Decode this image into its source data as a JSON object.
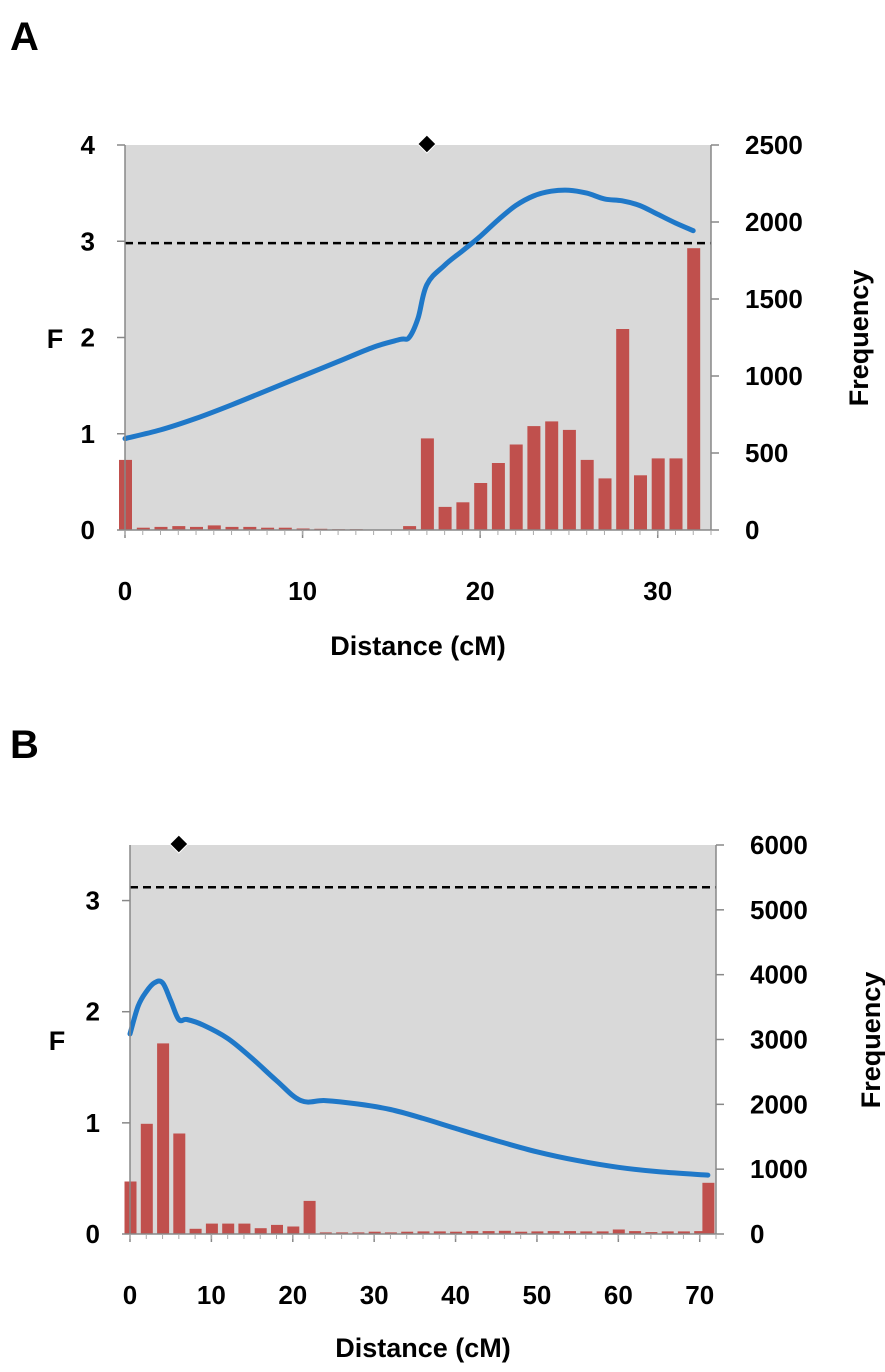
{
  "panels": [
    {
      "label": "A",
      "chart_data": {
        "type": "bar+line",
        "xlabel": "Distance (cM)",
        "ylabel_left": "F",
        "ylabel_right": "Frequency",
        "xlim": [
          0,
          33
        ],
        "ylim_left": [
          0,
          4
        ],
        "ylim_right": [
          0,
          2500
        ],
        "xticks": [
          "0",
          "10",
          "20",
          "30"
        ],
        "yticks_left": [
          "0",
          "1",
          "2",
          "3",
          "4"
        ],
        "yticks_right": [
          "0",
          "500",
          "1000",
          "1500",
          "2000",
          "2500"
        ],
        "threshold": 2.98,
        "marker_x": 17,
        "bars": {
          "name": "Frequency",
          "x": [
            0,
            1,
            2,
            3,
            4,
            5,
            6,
            7,
            8,
            9,
            10,
            11,
            12,
            13,
            14,
            15,
            16,
            17,
            18,
            19,
            20,
            21,
            22,
            23,
            24,
            25,
            26,
            27,
            28,
            29,
            30,
            31,
            32
          ],
          "values": [
            455,
            15,
            20,
            25,
            20,
            30,
            20,
            20,
            15,
            15,
            10,
            8,
            5,
            5,
            0,
            0,
            25,
            595,
            150,
            180,
            305,
            435,
            555,
            675,
            705,
            650,
            455,
            335,
            1305,
            355,
            465,
            465,
            1830
          ]
        },
        "line": {
          "name": "F",
          "x": [
            0,
            2,
            4,
            6,
            8,
            10,
            12,
            14,
            15.5,
            16,
            16.5,
            17,
            18,
            19,
            20,
            21,
            22,
            23,
            24,
            25,
            26,
            27,
            28,
            29,
            30,
            31,
            32
          ],
          "values": [
            0.95,
            1.04,
            1.16,
            1.3,
            1.45,
            1.6,
            1.75,
            1.9,
            1.98,
            2.0,
            2.2,
            2.55,
            2.75,
            2.9,
            3.05,
            3.22,
            3.37,
            3.47,
            3.52,
            3.53,
            3.5,
            3.44,
            3.42,
            3.37,
            3.28,
            3.19,
            3.11
          ]
        },
        "colors": {
          "bars": "#c0504d",
          "line": "#1f78c8",
          "background": "#d9d9d9"
        }
      }
    },
    {
      "label": "B",
      "chart_data": {
        "type": "bar+line",
        "xlabel": "Distance (cM)",
        "ylabel_left": "F",
        "ylabel_right": "Frequency",
        "xlim": [
          0,
          72
        ],
        "ylim_left": [
          0,
          3.5
        ],
        "ylim_right": [
          0,
          6000
        ],
        "xticks": [
          "0",
          "10",
          "20",
          "30",
          "40",
          "50",
          "60",
          "70"
        ],
        "yticks_left": [
          "0",
          "1",
          "2",
          "3"
        ],
        "yticks_right": [
          "0",
          "1000",
          "2000",
          "3000",
          "4000",
          "5000",
          "6000"
        ],
        "threshold": 3.12,
        "marker_x": 6,
        "bars": {
          "name": "Frequency",
          "x": [
            0,
            2,
            4,
            6,
            8,
            10,
            12,
            14,
            16,
            18,
            20,
            22,
            24,
            26,
            28,
            30,
            32,
            34,
            36,
            38,
            40,
            42,
            44,
            46,
            48,
            50,
            52,
            54,
            56,
            58,
            60,
            62,
            64,
            66,
            68,
            70,
            71
          ],
          "values": [
            810,
            1700,
            2940,
            1550,
            80,
            160,
            160,
            160,
            90,
            140,
            115,
            510,
            25,
            25,
            25,
            35,
            25,
            35,
            40,
            40,
            35,
            45,
            45,
            50,
            35,
            40,
            45,
            45,
            40,
            40,
            70,
            45,
            30,
            40,
            40,
            45,
            790
          ]
        },
        "line": {
          "name": "F",
          "x": [
            0,
            1,
            2,
            3,
            4,
            5,
            6,
            7,
            9,
            12,
            15,
            18,
            21,
            24,
            28,
            32,
            36,
            40,
            45,
            50,
            55,
            60,
            65,
            71
          ],
          "values": [
            1.8,
            2.05,
            2.18,
            2.26,
            2.26,
            2.1,
            1.93,
            1.93,
            1.88,
            1.76,
            1.58,
            1.38,
            1.2,
            1.2,
            1.17,
            1.12,
            1.04,
            0.95,
            0.84,
            0.74,
            0.66,
            0.6,
            0.56,
            0.53
          ]
        },
        "colors": {
          "bars": "#c0504d",
          "line": "#1f78c8",
          "background": "#d9d9d9"
        }
      }
    }
  ]
}
